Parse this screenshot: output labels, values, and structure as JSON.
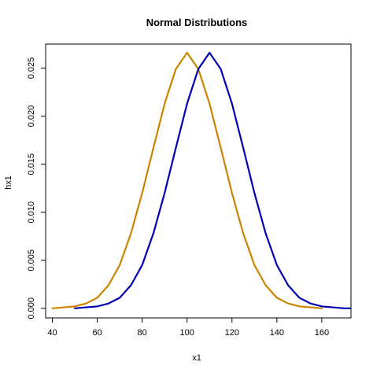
{
  "chart_data": {
    "type": "line",
    "title": "Normal Distributions",
    "xlabel": "x1",
    "ylabel": "hx1",
    "xlim": [
      37,
      173
    ],
    "ylim": [
      -0.001,
      0.0275
    ],
    "x_ticks": [
      40,
      60,
      80,
      100,
      120,
      140,
      160
    ],
    "y_ticks": [
      0.0,
      0.005,
      0.01,
      0.015,
      0.02,
      0.025
    ],
    "y_tick_labels": [
      "0.000",
      "0.005",
      "0.010",
      "0.015",
      "0.020",
      "0.025"
    ],
    "series": [
      {
        "color": "#CC8400",
        "x": [
          40,
          45,
          50,
          55,
          60,
          65,
          70,
          75,
          80,
          85,
          90,
          95,
          100,
          105,
          110,
          115,
          120,
          125,
          130,
          135,
          140,
          145,
          150,
          155,
          160
        ],
        "values": [
          0.0,
          0.0001,
          0.0002,
          0.0005,
          0.0011,
          0.0024,
          0.0045,
          0.0078,
          0.012,
          0.0167,
          0.0213,
          0.0249,
          0.0266,
          0.0249,
          0.0213,
          0.0167,
          0.012,
          0.0078,
          0.0045,
          0.0024,
          0.0011,
          0.0005,
          0.0002,
          0.0001,
          0.0
        ]
      },
      {
        "color": "#0000B3",
        "x": [
          50,
          55,
          60,
          65,
          70,
          75,
          80,
          85,
          90,
          95,
          100,
          105,
          110,
          115,
          120,
          125,
          130,
          135,
          140,
          145,
          150,
          155,
          160,
          165,
          170,
          173
        ],
        "values": [
          0.0,
          0.0001,
          0.0002,
          0.0005,
          0.0011,
          0.0024,
          0.0045,
          0.0078,
          0.012,
          0.0167,
          0.0213,
          0.0249,
          0.0266,
          0.0249,
          0.0213,
          0.0167,
          0.012,
          0.0078,
          0.0045,
          0.0024,
          0.0011,
          0.0005,
          0.0002,
          0.0001,
          0.0,
          0.0
        ]
      }
    ]
  }
}
